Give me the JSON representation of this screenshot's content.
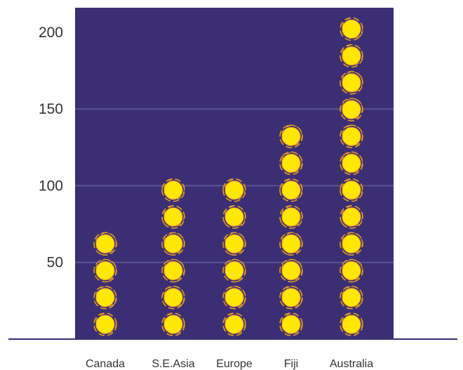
{
  "chart_data": {
    "type": "bar",
    "style": "pictograph",
    "categories": [
      "Canada",
      "S.E.Asia",
      "Europe",
      "Fiji",
      "Australia"
    ],
    "values": [
      70,
      105,
      105,
      140,
      210
    ],
    "units_per_symbol": 17.5,
    "symbol_counts": [
      4,
      6,
      6,
      8,
      12
    ],
    "symbol_icon": "sun-icon",
    "yticks": [
      50,
      100,
      150,
      200
    ],
    "ylim": [
      0,
      216
    ],
    "grid": true,
    "title": "",
    "xlabel": "",
    "ylabel": ""
  },
  "colors": {
    "plot_background": "#3b2e75",
    "gridline": "#5c5396",
    "axis": "#3b2e75",
    "symbol_fill": "#ffe800",
    "symbol_ray": "#f0a020"
  }
}
